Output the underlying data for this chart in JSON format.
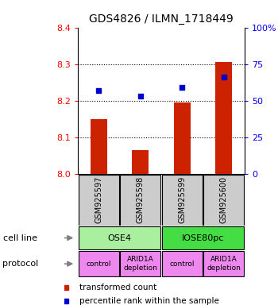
{
  "title": "GDS4826 / ILMN_1718449",
  "samples": [
    "GSM925597",
    "GSM925598",
    "GSM925599",
    "GSM925600"
  ],
  "bar_values": [
    8.15,
    8.065,
    8.195,
    8.305
  ],
  "bar_bottom": 8.0,
  "percentile_values": [
    57,
    53,
    59,
    66
  ],
  "left_yticks": [
    8.0,
    8.1,
    8.2,
    8.3,
    8.4
  ],
  "left_ylim": [
    8.0,
    8.4
  ],
  "right_ylim": [
    0,
    100
  ],
  "right_yticks": [
    0,
    25,
    50,
    75,
    100
  ],
  "right_yticklabels": [
    "0",
    "25",
    "50",
    "75",
    "100%"
  ],
  "bar_color": "#cc2200",
  "dot_color": "#0000cc",
  "cell_line_colors": {
    "OSE4": "#aaeea0",
    "IOSE80pc": "#44dd44"
  },
  "protocol_color": "#ee88ee",
  "gsm_bg_color": "#cccccc",
  "cell_line_row": [
    [
      "OSE4",
      0,
      2
    ],
    [
      "IOSE80pc",
      2,
      4
    ]
  ],
  "protocol_row": [
    [
      "control",
      0,
      1
    ],
    [
      "ARID1A\ndepletion",
      1,
      2
    ],
    [
      "control",
      2,
      3
    ],
    [
      "ARID1A\ndepletion",
      3,
      4
    ]
  ],
  "legend_red_label": "transformed count",
  "legend_blue_label": "percentile rank within the sample",
  "cell_line_label": "cell line",
  "protocol_label": "protocol",
  "grid_lines": [
    8.1,
    8.2,
    8.3
  ]
}
